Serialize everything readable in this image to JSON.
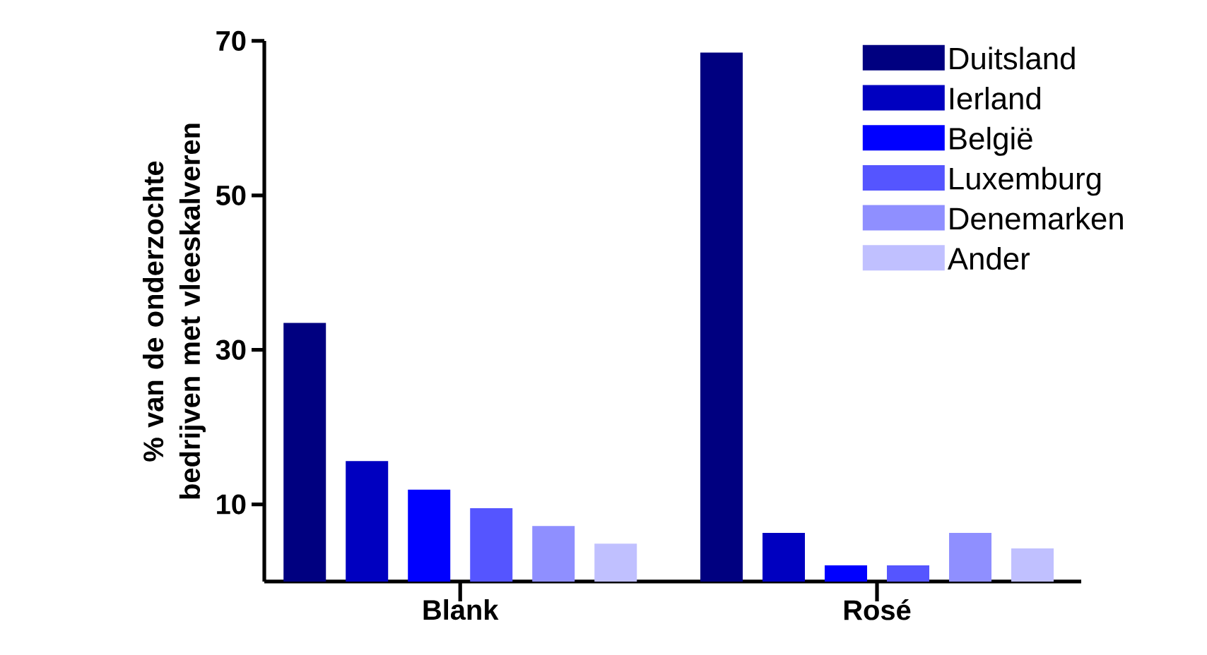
{
  "chart_data": {
    "type": "bar",
    "ylabel": "% van de onderzochte bedrijven met vleeskalveren",
    "categories": [
      "Blank",
      "Rosé"
    ],
    "series": [
      {
        "name": "Duitsland",
        "color": "#000080",
        "values": [
          33.5,
          68.5
        ]
      },
      {
        "name": "Ierland",
        "color": "#0000c0",
        "values": [
          15.6,
          6.3
        ]
      },
      {
        "name": "België",
        "color": "#0000ff",
        "values": [
          11.9,
          2.1
        ]
      },
      {
        "name": "Luxemburg",
        "color": "#5555ff",
        "values": [
          9.5,
          2.1
        ]
      },
      {
        "name": "Denemarken",
        "color": "#8f8fff",
        "values": [
          7.2,
          6.3
        ]
      },
      {
        "name": "Ander",
        "color": "#c0c0ff",
        "values": [
          4.9,
          4.3
        ]
      }
    ],
    "ylim": [
      0,
      70
    ],
    "yticks": [
      10,
      30,
      50,
      70
    ],
    "legend": "top right"
  }
}
